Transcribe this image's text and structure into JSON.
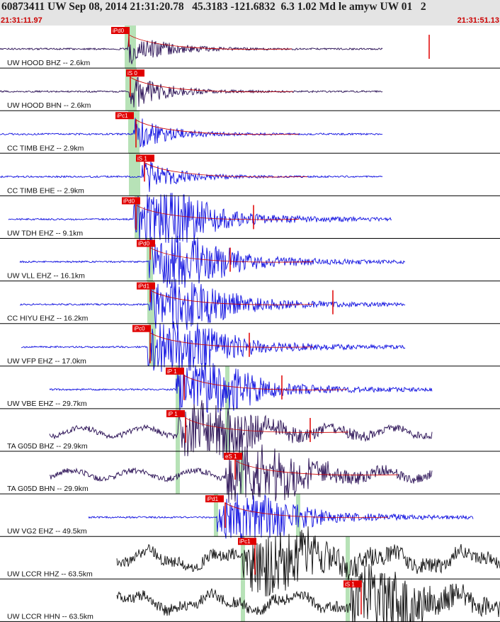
{
  "header": {
    "title": "60873411 UW Sep 08, 2014 21:31:20.78   45.3183 -121.6832  6.3 1.02 Md le amyw UW 01   2",
    "start_time": "21:31:11.97",
    "end_time": "21:31:51.13"
  },
  "colors": {
    "header_bg": "#e4e4e4",
    "time_text": "#cc0000",
    "pick": "#e00000",
    "green_band": "#9fd89f"
  },
  "traces": [
    {
      "label": "UW HOOD BHZ -- 2.6km",
      "color": "#2a1055",
      "pick": "iPd0",
      "start": 0,
      "end": 540,
      "amp": 1
    },
    {
      "label": "UW HOOD BHN -- 2.6km",
      "color": "#2a1055",
      "pick": "iS 0",
      "start": 0,
      "end": 540,
      "amp": 1
    },
    {
      "label": "CC TIMB EHZ -- 2.9km",
      "color": "#1010e0",
      "pick": "iPc1",
      "start": 0,
      "end": 540,
      "amp": 1
    },
    {
      "label": "CC TIMB EHE -- 2.9km",
      "color": "#1010e0",
      "pick": "iS 1",
      "start": 0,
      "end": 540,
      "amp": 1
    },
    {
      "label": "UW TDH EHZ -- 9.1km",
      "color": "#1010e0",
      "pick": "iPd0",
      "start": 12,
      "end": 553,
      "amp": 1
    },
    {
      "label": "UW VLL EHZ -- 16.1km",
      "color": "#1010e0",
      "pick": "iPd0",
      "start": 28,
      "end": 572,
      "amp": 1
    },
    {
      "label": "CC HIYU EHZ -- 16.2km",
      "color": "#1010e0",
      "pick": "iPd1",
      "start": 28,
      "end": 572,
      "amp": 1
    },
    {
      "label": "UW VFP EHZ -- 17.0km",
      "color": "#1010e0",
      "pick": "iPc0",
      "start": 30,
      "end": 572,
      "amp": 1
    },
    {
      "label": "UW VBE EHZ -- 29.7km",
      "color": "#1010e0",
      "pick": "iP 1",
      "start": 70,
      "end": 610,
      "amp": 1
    },
    {
      "label": "TA G05D BHZ -- 29.9km",
      "color": "#2a1055",
      "pick": "iP 1",
      "start": 70,
      "end": 610,
      "amp": 1
    },
    {
      "label": "TA G05D BHN -- 29.9km",
      "color": "#2a1055",
      "pick": "eS 1",
      "start": 70,
      "end": 610,
      "amp": 1
    },
    {
      "label": "UW VG2 EHZ -- 49.5km",
      "color": "#1010e0",
      "pick": "iPd1",
      "start": 125,
      "end": 668,
      "amp": 1
    },
    {
      "label": "UW LCCR HHZ -- 63.5km",
      "color": "#101010",
      "pick": "iPc1",
      "start": 165,
      "end": 706,
      "amp": 1
    },
    {
      "label": "UW LCCR HHN -- 63.5km",
      "color": "#101010",
      "pick": "iS 1",
      "start": 165,
      "end": 706,
      "amp": 1
    }
  ]
}
